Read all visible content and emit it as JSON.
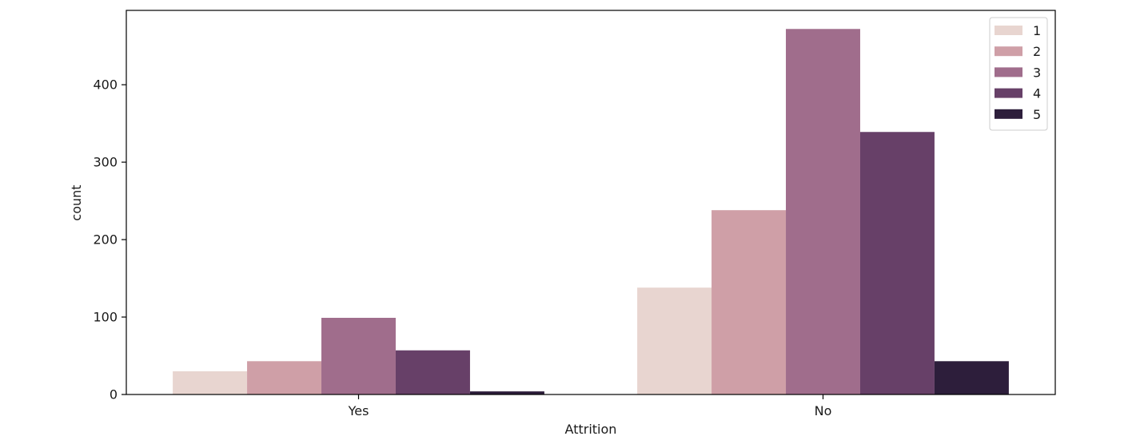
{
  "chart_data": {
    "type": "bar",
    "categories": [
      "Yes",
      "No"
    ],
    "series": [
      {
        "name": "1",
        "color": "#e8d5d0",
        "values": [
          30,
          138
        ]
      },
      {
        "name": "2",
        "color": "#cf9fa7",
        "values": [
          43,
          238
        ]
      },
      {
        "name": "3",
        "color": "#a06d8c",
        "values": [
          99,
          472
        ]
      },
      {
        "name": "4",
        "color": "#674068",
        "values": [
          57,
          339
        ]
      },
      {
        "name": "5",
        "color": "#2d1e3b",
        "values": [
          4,
          43
        ]
      }
    ],
    "title": "",
    "xlabel": "Attrition",
    "ylabel": "count",
    "ylim": [
      0,
      496
    ],
    "yticks": [
      0,
      100,
      200,
      300,
      400
    ],
    "grid": false,
    "legend_position": "top-right"
  }
}
